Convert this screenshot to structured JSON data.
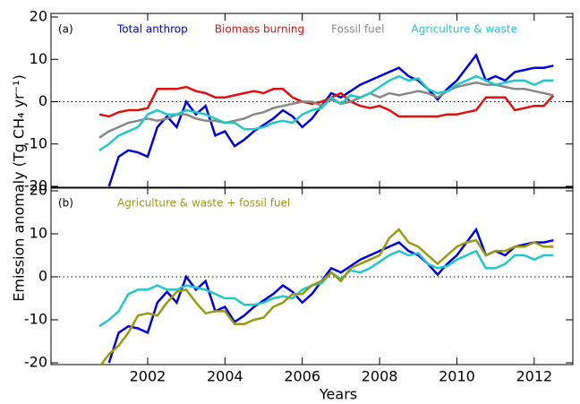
{
  "chart_data": [
    {
      "type": "line",
      "panel_label": "(a)",
      "y_label": "Emission anomaly (Tg CH₄ yr⁻¹)",
      "x": [
        2000.75,
        2001.0,
        2001.25,
        2001.5,
        2001.75,
        2002.0,
        2002.25,
        2002.5,
        2002.75,
        2003.0,
        2003.25,
        2003.5,
        2003.75,
        2004.0,
        2004.25,
        2004.5,
        2004.75,
        2005.0,
        2005.25,
        2005.5,
        2005.75,
        2006.0,
        2006.25,
        2006.5,
        2006.75,
        2007.0,
        2007.25,
        2007.5,
        2007.75,
        2008.0,
        2008.25,
        2008.5,
        2008.75,
        2009.0,
        2009.25,
        2009.5,
        2009.75,
        2010.0,
        2010.25,
        2010.5,
        2010.75,
        2011.0,
        2011.25,
        2011.5,
        2011.75,
        2012.0,
        2012.25,
        2012.5
      ],
      "series": [
        {
          "name": "Total anthrop",
          "color": "#0000dd",
          "values": [
            null,
            -20,
            -13,
            -11.5,
            -12,
            -13,
            -6,
            -3.5,
            -6,
            0,
            -3,
            -1,
            -8,
            -7,
            -10.5,
            -9,
            -7,
            -5.5,
            -4,
            -2,
            -3.5,
            -6,
            -4,
            -1,
            2,
            1,
            2.5,
            4,
            5,
            6,
            7,
            8,
            6,
            5,
            3,
            0.5,
            3,
            5,
            8,
            11,
            5,
            6,
            5,
            7,
            7.5,
            8,
            8,
            8.5
          ]
        },
        {
          "name": "Biomass burning",
          "color": "#e01010",
          "values": [
            -3,
            -3.5,
            -2.5,
            -2,
            -2,
            -1.5,
            3,
            3,
            3,
            3.5,
            2.5,
            2,
            1,
            1,
            1.5,
            2,
            2.5,
            2,
            3,
            3,
            1,
            0,
            -0.5,
            0,
            1,
            2,
            0,
            -1,
            -1.5,
            -1,
            -2,
            -3.5,
            -3.5,
            -3.5,
            -3.5,
            -3.5,
            -3,
            -3,
            -2.5,
            -2,
            1,
            1,
            1,
            -2,
            -1.5,
            -1,
            -1,
            1.5
          ]
        },
        {
          "name": "Fossil fuel",
          "color": "#888888",
          "values": [
            -8.5,
            -7,
            -6,
            -5,
            -4.5,
            -4,
            -4.5,
            -4,
            -3,
            -3,
            -4,
            -4.5,
            -4.5,
            -5,
            -4.5,
            -4,
            -3,
            -2.5,
            -1.5,
            -1,
            -0.5,
            0,
            0,
            -1,
            0.5,
            -0.5,
            0,
            1,
            2,
            1,
            2,
            1.5,
            2,
            2.5,
            2,
            1,
            2.5,
            3.5,
            4,
            4.5,
            4,
            4,
            3.5,
            3,
            3,
            2.5,
            2,
            1.5
          ]
        },
        {
          "name": "Agriculture & waste",
          "color": "#20c8c8",
          "values": [
            -11.5,
            -10,
            -8,
            -7,
            -6,
            -3,
            -2,
            -3,
            -3,
            -2,
            -2.5,
            -3,
            -4,
            -5,
            -5,
            -6.5,
            -6.5,
            -6,
            -5,
            -4.5,
            -5,
            -3,
            -2,
            -1.5,
            1,
            -0.5,
            1.5,
            1,
            2,
            3.5,
            5,
            6,
            5,
            5.5,
            3,
            2,
            2.5,
            4,
            5,
            6,
            5,
            4,
            4.5,
            5,
            5,
            4,
            5,
            5
          ]
        }
      ],
      "xlim": [
        1999.5,
        2013
      ],
      "xticks": [
        2002,
        2004,
        2006,
        2008,
        2010,
        2012
      ],
      "ylim": [
        -20,
        20
      ],
      "yticks": [
        -20,
        -10,
        0,
        10,
        20
      ],
      "zero_line": true
    },
    {
      "type": "line",
      "panel_label": "(b)",
      "x_label": "Years",
      "x": [
        2000.75,
        2001.0,
        2001.25,
        2001.5,
        2001.75,
        2002.0,
        2002.25,
        2002.5,
        2002.75,
        2003.0,
        2003.25,
        2003.5,
        2003.75,
        2004.0,
        2004.25,
        2004.5,
        2004.75,
        2005.0,
        2005.25,
        2005.5,
        2005.75,
        2006.0,
        2006.25,
        2006.5,
        2006.75,
        2007.0,
        2007.25,
        2007.5,
        2007.75,
        2008.0,
        2008.25,
        2008.5,
        2008.75,
        2009.0,
        2009.25,
        2009.5,
        2009.75,
        2010.0,
        2010.25,
        2010.5,
        2010.75,
        2011.0,
        2011.25,
        2011.5,
        2011.75,
        2012.0,
        2012.25,
        2012.5
      ],
      "series": [
        {
          "color": "#0000dd",
          "values": [
            null,
            -20,
            -13,
            -11.5,
            -12,
            -13,
            -6,
            -3.5,
            -6,
            0,
            -3,
            -1,
            -8,
            -7,
            -10.5,
            -9,
            -7,
            -5.5,
            -4,
            -2,
            -3.5,
            -6,
            -4,
            -1,
            2,
            1,
            2.5,
            4,
            5,
            6,
            7,
            8,
            6,
            5,
            3,
            0.5,
            3,
            5,
            8,
            11,
            5,
            6,
            5,
            7,
            7.5,
            8,
            8,
            8.5
          ]
        },
        {
          "color": "#20c8c8",
          "values": [
            -11.5,
            -10,
            -8,
            -4,
            -3,
            -3,
            -2,
            -3,
            -3,
            -2,
            -2.5,
            -3,
            -4,
            -5,
            -5,
            -6.5,
            -6.5,
            -6,
            -5,
            -4.5,
            -5,
            -3,
            -2,
            -1.5,
            1,
            -0.5,
            1.5,
            1,
            2,
            3.5,
            5,
            6,
            5,
            5.5,
            3,
            2,
            2.5,
            4,
            5,
            6,
            2,
            2,
            3,
            5,
            5,
            4,
            5,
            5
          ]
        },
        {
          "name": "Agriculture & waste + fossil fuel",
          "color": "#9a9a10",
          "values": [
            -21,
            -18,
            -16,
            -13,
            -9,
            -8.5,
            -9,
            -6,
            -3.5,
            -3,
            -6,
            -8.5,
            -8,
            -8,
            -11,
            -11,
            -10,
            -9.5,
            -7,
            -6,
            -4,
            -4,
            -2,
            -1,
            1,
            -1,
            2,
            3,
            4,
            5,
            9,
            11,
            8,
            7,
            5,
            3,
            5,
            7,
            8,
            8.5,
            5,
            6,
            6,
            7,
            7,
            8,
            7,
            7
          ]
        }
      ],
      "xlim": [
        1999.5,
        2013
      ],
      "xticks": [
        2002,
        2004,
        2006,
        2008,
        2010,
        2012
      ],
      "ylim": [
        -20,
        20
      ],
      "yticks": [
        -20,
        -10,
        0,
        10,
        20
      ],
      "zero_line": true
    }
  ]
}
